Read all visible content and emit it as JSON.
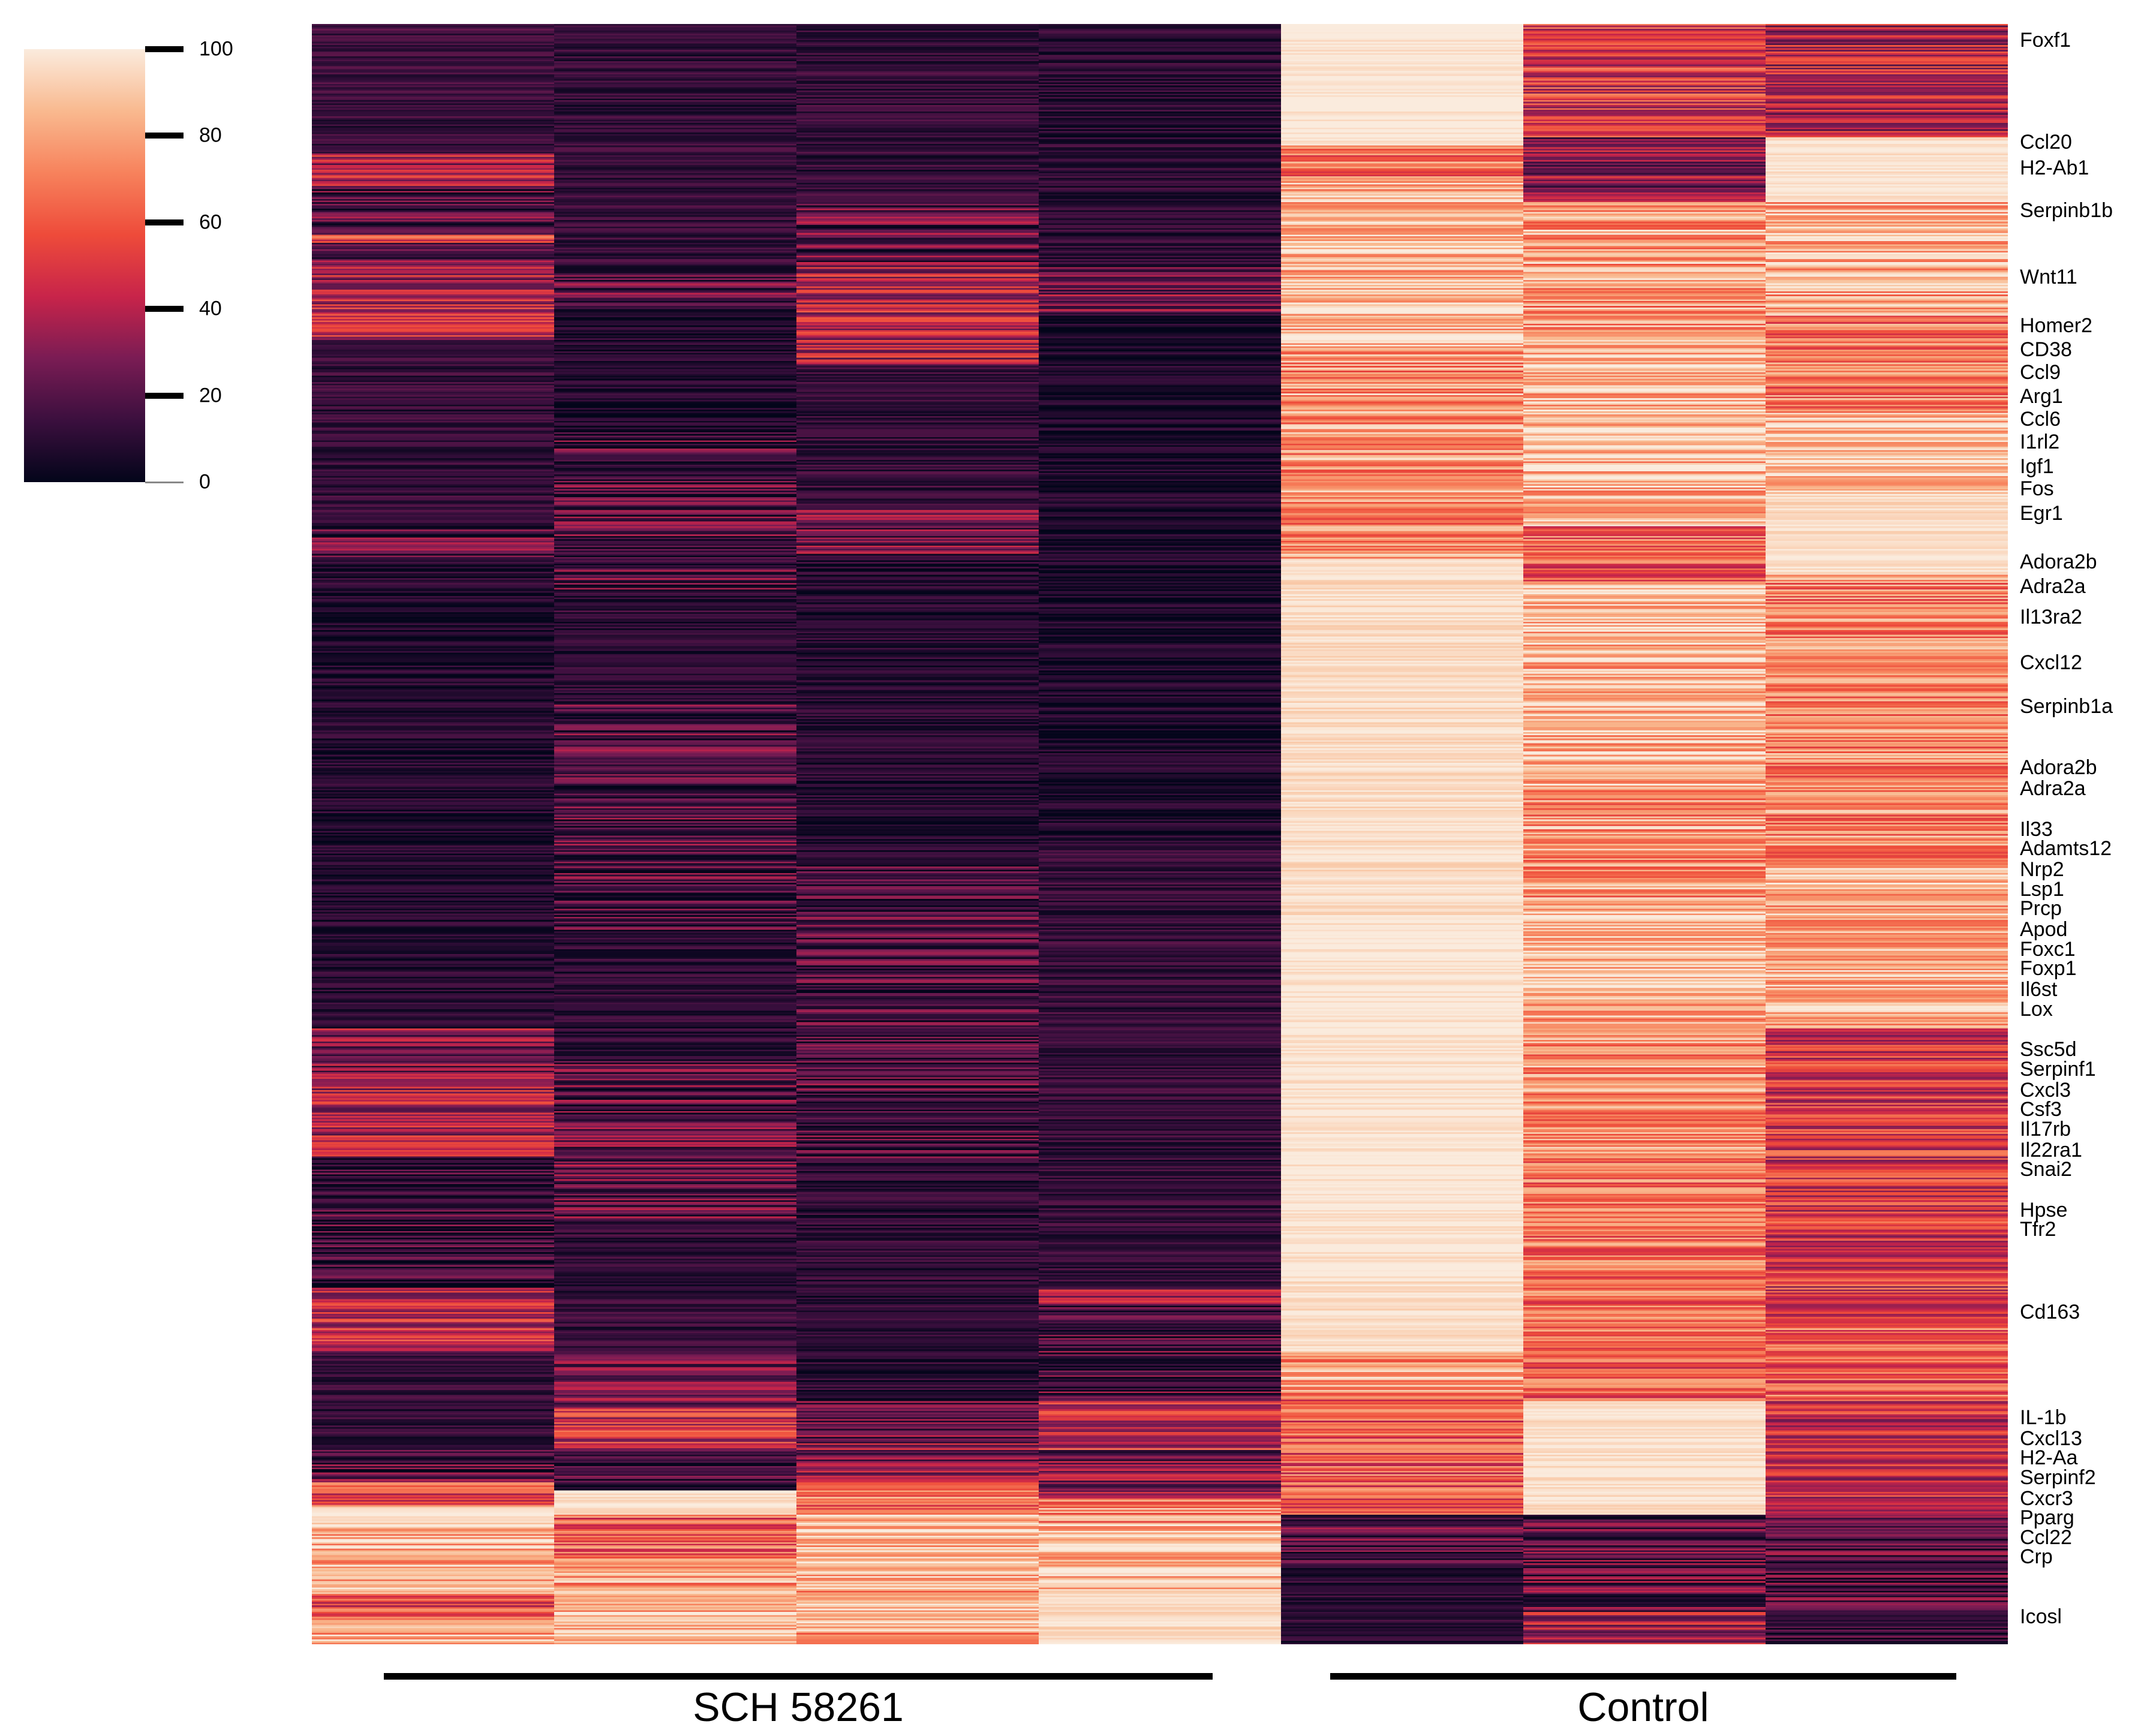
{
  "chart_data": {
    "type": "heatmap",
    "title": "",
    "colorbar": {
      "min": 0,
      "max": 100,
      "ticks": [
        0,
        20,
        40,
        60,
        80,
        100
      ]
    },
    "groups": [
      {
        "name": "SCH 58261",
        "columns": [
          0,
          1,
          2,
          3
        ]
      },
      {
        "name": "Control",
        "columns": [
          4,
          5,
          6
        ]
      }
    ],
    "num_columns": 7,
    "num_rows": 1000,
    "colormap": [
      "#03051A",
      "#3B0F3E",
      "#7A1C54",
      "#C8244A",
      "#EE4B3A",
      "#F7825C",
      "#F9B98F",
      "#FAEBDD"
    ],
    "column_blocks": [
      [
        {
          "end": 0.08,
          "mean": 14
        },
        {
          "end": 0.1,
          "mean": 38
        },
        {
          "end": 0.13,
          "mean": 18
        },
        {
          "end": 0.135,
          "mean": 55
        },
        {
          "end": 0.15,
          "mean": 22
        },
        {
          "end": 0.18,
          "mean": 40
        },
        {
          "end": 0.195,
          "mean": 48
        },
        {
          "end": 0.31,
          "mean": 12
        },
        {
          "end": 0.33,
          "mean": 20
        },
        {
          "end": 0.62,
          "mean": 8
        },
        {
          "end": 0.65,
          "mean": 28
        },
        {
          "end": 0.7,
          "mean": 38
        },
        {
          "end": 0.78,
          "mean": 15
        },
        {
          "end": 0.82,
          "mean": 45
        },
        {
          "end": 0.88,
          "mean": 12
        },
        {
          "end": 0.9,
          "mean": 20
        },
        {
          "end": 0.915,
          "mean": 55
        },
        {
          "end": 0.925,
          "mean": 96
        },
        {
          "end": 0.97,
          "mean": 84
        },
        {
          "end": 0.985,
          "mean": 58
        },
        {
          "end": 1.0,
          "mean": 82
        }
      ],
      [
        {
          "end": 0.15,
          "mean": 12
        },
        {
          "end": 0.175,
          "mean": 22
        },
        {
          "end": 0.25,
          "mean": 8
        },
        {
          "end": 0.35,
          "mean": 18
        },
        {
          "end": 0.42,
          "mean": 10
        },
        {
          "end": 0.56,
          "mean": 18
        },
        {
          "end": 0.64,
          "mean": 10
        },
        {
          "end": 0.74,
          "mean": 22
        },
        {
          "end": 0.82,
          "mean": 12
        },
        {
          "end": 0.855,
          "mean": 28
        },
        {
          "end": 0.88,
          "mean": 48
        },
        {
          "end": 0.905,
          "mean": 18
        },
        {
          "end": 0.92,
          "mean": 96
        },
        {
          "end": 0.945,
          "mean": 62
        },
        {
          "end": 0.98,
          "mean": 78
        },
        {
          "end": 1.0,
          "mean": 90
        }
      ],
      [
        {
          "end": 0.11,
          "mean": 12
        },
        {
          "end": 0.15,
          "mean": 22
        },
        {
          "end": 0.21,
          "mean": 40
        },
        {
          "end": 0.3,
          "mean": 12
        },
        {
          "end": 0.33,
          "mean": 25
        },
        {
          "end": 0.52,
          "mean": 8
        },
        {
          "end": 0.7,
          "mean": 16
        },
        {
          "end": 0.85,
          "mean": 10
        },
        {
          "end": 0.9,
          "mean": 28
        },
        {
          "end": 0.92,
          "mean": 65
        },
        {
          "end": 0.96,
          "mean": 88
        },
        {
          "end": 1.0,
          "mean": 80
        }
      ],
      [
        {
          "end": 0.15,
          "mean": 10
        },
        {
          "end": 0.18,
          "mean": 26
        },
        {
          "end": 0.5,
          "mean": 6
        },
        {
          "end": 0.78,
          "mean": 12
        },
        {
          "end": 0.79,
          "mean": 38
        },
        {
          "end": 0.85,
          "mean": 18
        },
        {
          "end": 0.88,
          "mean": 45
        },
        {
          "end": 0.91,
          "mean": 28
        },
        {
          "end": 0.925,
          "mean": 75
        },
        {
          "end": 0.97,
          "mean": 88
        },
        {
          "end": 1.0,
          "mean": 95
        }
      ],
      [
        {
          "end": 0.075,
          "mean": 100
        },
        {
          "end": 0.095,
          "mean": 68
        },
        {
          "end": 0.2,
          "mean": 86
        },
        {
          "end": 0.33,
          "mean": 76
        },
        {
          "end": 0.55,
          "mean": 96
        },
        {
          "end": 0.77,
          "mean": 99
        },
        {
          "end": 0.82,
          "mean": 97
        },
        {
          "end": 0.845,
          "mean": 78
        },
        {
          "end": 0.92,
          "mean": 60
        },
        {
          "end": 0.95,
          "mean": 20
        },
        {
          "end": 1.0,
          "mean": 10
        }
      ],
      [
        {
          "end": 0.07,
          "mean": 50
        },
        {
          "end": 0.11,
          "mean": 32
        },
        {
          "end": 0.2,
          "mean": 78
        },
        {
          "end": 0.31,
          "mean": 86
        },
        {
          "end": 0.345,
          "mean": 62
        },
        {
          "end": 0.47,
          "mean": 85
        },
        {
          "end": 0.54,
          "mean": 76
        },
        {
          "end": 0.6,
          "mean": 90
        },
        {
          "end": 0.7,
          "mean": 76
        },
        {
          "end": 0.81,
          "mean": 66
        },
        {
          "end": 0.85,
          "mean": 60
        },
        {
          "end": 0.92,
          "mean": 97
        },
        {
          "end": 0.98,
          "mean": 22
        },
        {
          "end": 1.0,
          "mean": 38
        }
      ],
      [
        {
          "end": 0.07,
          "mean": 40
        },
        {
          "end": 0.11,
          "mean": 99
        },
        {
          "end": 0.18,
          "mean": 82
        },
        {
          "end": 0.24,
          "mean": 68
        },
        {
          "end": 0.29,
          "mean": 90
        },
        {
          "end": 0.34,
          "mean": 96
        },
        {
          "end": 0.52,
          "mean": 72
        },
        {
          "end": 0.62,
          "mean": 84
        },
        {
          "end": 0.8,
          "mean": 50
        },
        {
          "end": 0.85,
          "mean": 62
        },
        {
          "end": 0.92,
          "mean": 46
        },
        {
          "end": 1.0,
          "mean": 18
        }
      ]
    ],
    "gene_labels": [
      {
        "name": "Foxf1",
        "row": 0.01
      },
      {
        "name": "Ccl20",
        "row": 0.073
      },
      {
        "name": "H2-Ab1",
        "row": 0.089
      },
      {
        "name": "Serpinb1b",
        "row": 0.115
      },
      {
        "name": "Wnt11",
        "row": 0.156
      },
      {
        "name": "Homer2",
        "row": 0.186
      },
      {
        "name": "CD38",
        "row": 0.201
      },
      {
        "name": "Ccl9",
        "row": 0.215
      },
      {
        "name": "Arg1",
        "row": 0.23
      },
      {
        "name": "Ccl6",
        "row": 0.244
      },
      {
        "name": "I1rl2",
        "row": 0.258
      },
      {
        "name": "Igf1",
        "row": 0.273
      },
      {
        "name": "Fos",
        "row": 0.287
      },
      {
        "name": "Egr1",
        "row": 0.302
      },
      {
        "name": "Adora2b",
        "row": 0.332
      },
      {
        "name": "Adra2a",
        "row": 0.347
      },
      {
        "name": "Il13ra2",
        "row": 0.366
      },
      {
        "name": "Cxcl12",
        "row": 0.394
      },
      {
        "name": "Serpinb1a",
        "row": 0.421
      },
      {
        "name": "Adora2b",
        "row": 0.459
      },
      {
        "name": "Adra2a",
        "row": 0.472
      },
      {
        "name": "Il33",
        "row": 0.497
      },
      {
        "name": "Adamts12",
        "row": 0.509
      },
      {
        "name": "Nrp2",
        "row": 0.522
      },
      {
        "name": "Lsp1",
        "row": 0.534
      },
      {
        "name": "Prcp",
        "row": 0.546
      },
      {
        "name": "Apod",
        "row": 0.559
      },
      {
        "name": "Foxc1",
        "row": 0.571
      },
      {
        "name": "Foxp1",
        "row": 0.583
      },
      {
        "name": "Il6st",
        "row": 0.596
      },
      {
        "name": "Lox",
        "row": 0.608
      },
      {
        "name": "Ssc5d",
        "row": 0.633
      },
      {
        "name": "Serpinf1",
        "row": 0.645
      },
      {
        "name": "Cxcl3",
        "row": 0.658
      },
      {
        "name": "Csf3",
        "row": 0.67
      },
      {
        "name": "Il17rb",
        "row": 0.682
      },
      {
        "name": "Il22ra1",
        "row": 0.695
      },
      {
        "name": "Snai2",
        "row": 0.707
      },
      {
        "name": "Hpse",
        "row": 0.732
      },
      {
        "name": "Tfr2",
        "row": 0.744
      },
      {
        "name": "Cd163",
        "row": 0.795
      },
      {
        "name": "IL-1b",
        "row": 0.86
      },
      {
        "name": "Cxcl13",
        "row": 0.873
      },
      {
        "name": "H2-Aa",
        "row": 0.885
      },
      {
        "name": "Serpinf2",
        "row": 0.897
      },
      {
        "name": "Cxcr3",
        "row": 0.91
      },
      {
        "name": "Pparg",
        "row": 0.922
      },
      {
        "name": "Ccl22",
        "row": 0.934
      },
      {
        "name": "Crp",
        "row": 0.946
      },
      {
        "name": "Icosl",
        "row": 0.983
      }
    ]
  }
}
